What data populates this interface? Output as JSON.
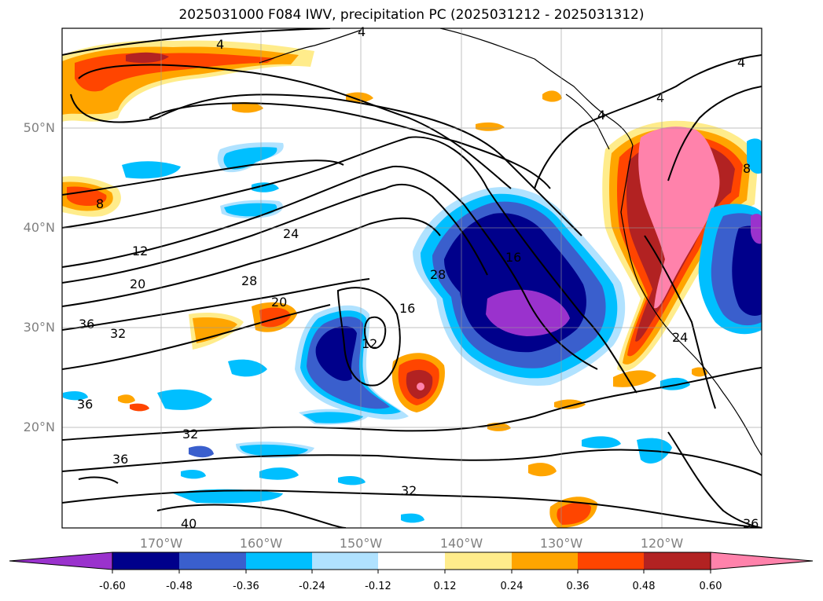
{
  "title": "2025031000 F084 IWV, precipitation PC (2025031212 - 2025031312)",
  "map": {
    "lat_labels": [
      "50°N",
      "40°N",
      "30°N",
      "20°N"
    ],
    "lon_labels": [
      "170°W",
      "160°W",
      "150°W",
      "140°W",
      "130°W",
      "120°W"
    ],
    "grid": true
  },
  "contours": {
    "variable": "IWV",
    "labels": [
      "4",
      "4",
      "4",
      "4",
      "4",
      "8",
      "8",
      "12",
      "12",
      "16",
      "16",
      "20",
      "20",
      "24",
      "24",
      "28",
      "28",
      "32",
      "32",
      "32",
      "36",
      "36",
      "36",
      "36",
      "40"
    ]
  },
  "colorbar": {
    "variable": "precipitation PC",
    "tick_labels": [
      "-0.60",
      "-0.48",
      "-0.36",
      "-0.24",
      "-0.12",
      "0.12",
      "0.24",
      "0.36",
      "0.48",
      "0.60"
    ],
    "colors": [
      "#9a32cd",
      "#00008b",
      "#3a5fcd",
      "#00bfff",
      "#b0e2ff",
      "#ffffff",
      "#ffec8b",
      "#ffa500",
      "#ff4500",
      "#b22222",
      "#ff82ab"
    ],
    "extend": "both"
  }
}
